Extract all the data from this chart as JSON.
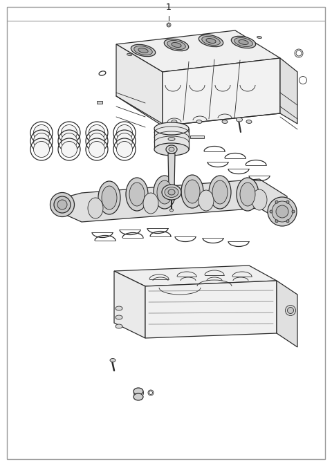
{
  "fig_width": 4.8,
  "fig_height": 6.74,
  "dpi": 100,
  "bg": "#ffffff",
  "lc": "#2a2a2a",
  "border_color": "#999999",
  "title": "1"
}
